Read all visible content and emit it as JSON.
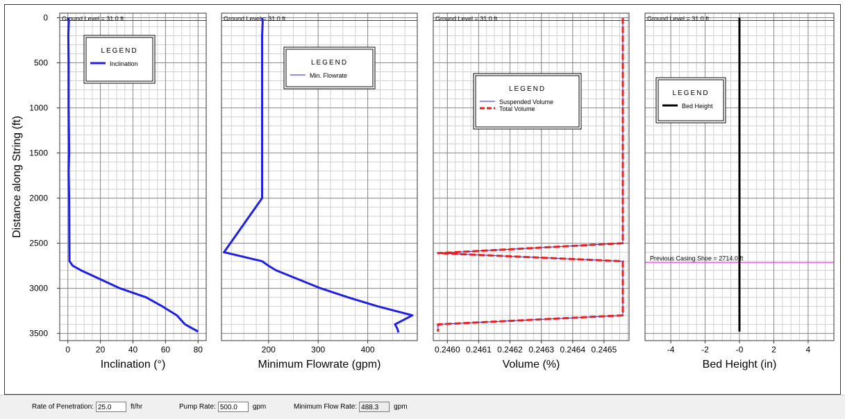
{
  "chart_data": [
    {
      "type": "line",
      "xlabel": "Inclination (°)",
      "ylabel": "Distance along String (ft)",
      "xlim": [
        -5,
        85
      ],
      "xticks": [
        0,
        20,
        40,
        60,
        80
      ],
      "xtick_labels": [
        "0",
        "20",
        "40",
        "60",
        "80"
      ],
      "ylim": [
        3580,
        -50
      ],
      "yticks": [
        0,
        500,
        1000,
        1500,
        2000,
        2500,
        3000,
        3500
      ],
      "ytick_labels": [
        "0",
        "500",
        "1000",
        "1500",
        "2000",
        "2500",
        "3000",
        "3500"
      ],
      "ground_label": "Ground Level = 31.0 ft",
      "ground_y": 31,
      "legend": {
        "title": "LEGEND",
        "entries": [
          {
            "label": "Inclination",
            "color": "#1f1fe6",
            "style": "solid-thick"
          }
        ]
      },
      "series": [
        {
          "name": "Inclination",
          "color": "#1f1fe6",
          "x": [
            0.5,
            0.6,
            0.3,
            0.5,
            0.5,
            0.8,
            0.5,
            0.8,
            1.0,
            3.0,
            8.0,
            20.0,
            32.0,
            48.0,
            58.0,
            67.0,
            72.0,
            80.0
          ],
          "y": [
            0,
            50,
            200,
            500,
            1000,
            1500,
            1700,
            2000,
            2700,
            2750,
            2800,
            2900,
            3000,
            3100,
            3200,
            3300,
            3400,
            3480
          ]
        }
      ]
    },
    {
      "type": "line",
      "xlabel": "Minimum Flowrate (gpm)",
      "xlim": [
        105,
        500
      ],
      "xticks": [
        200,
        300,
        400
      ],
      "xtick_labels": [
        "200",
        "300",
        "400"
      ],
      "ylim": [
        3580,
        -50
      ],
      "yticks": [
        0,
        500,
        1000,
        1500,
        2000,
        2500,
        3000,
        3500
      ],
      "ground_label": "Ground Level = 31.0 ft",
      "ground_y": 31,
      "legend": {
        "title": "LEGEND",
        "entries": [
          {
            "label": "Min. Flowrate",
            "color": "#1f1fe6",
            "style": "solid-thin"
          }
        ]
      },
      "series": [
        {
          "name": "Min. Flowrate",
          "color": "#1f1fe6",
          "x": [
            187,
            188,
            187,
            187,
            187,
            187,
            110,
            187,
            200,
            215,
            260,
            305,
            360,
            420,
            455,
            490,
            455,
            460,
            462
          ],
          "y": [
            0,
            50,
            200,
            500,
            1000,
            2000,
            2600,
            2700,
            2750,
            2800,
            2900,
            3000,
            3100,
            3200,
            3250,
            3300,
            3400,
            3450,
            3490
          ]
        }
      ]
    },
    {
      "type": "line",
      "xlabel": "Volume (%)",
      "xlim": [
        0.245955,
        0.24658
      ],
      "xticks": [
        0.246,
        0.2461,
        0.2462,
        0.2463,
        0.2464,
        0.2465
      ],
      "xtick_labels": [
        "0.2460",
        "0.2461",
        "0.2462",
        "0.2463",
        "0.2464",
        "0.2465"
      ],
      "ylim": [
        3580,
        -50
      ],
      "yticks": [
        0,
        500,
        1000,
        1500,
        2000,
        2500,
        3000,
        3500
      ],
      "ground_label": "Ground Level = 31.0 ft",
      "ground_y": 31,
      "legend": {
        "title": "LEGEND",
        "entries": [
          {
            "label": "Suspended Volume",
            "color": "#1f1fe6",
            "style": "solid-thin"
          },
          {
            "label": "Total Volume",
            "color": "#ee1c1c",
            "style": "dashed"
          }
        ]
      },
      "series": [
        {
          "name": "Suspended Volume",
          "color": "#1f1fe6",
          "x": [
            0.24656,
            0.24656,
            0.24656,
            0.24597,
            0.24656,
            0.24656,
            0.24656,
            0.24597,
            0.24597
          ],
          "y": [
            0,
            1000,
            2500,
            2610,
            2700,
            3000,
            3300,
            3400,
            3480
          ]
        },
        {
          "name": "Total Volume",
          "color": "#ee1c1c",
          "x": [
            0.24656,
            0.24656,
            0.24656,
            0.24597,
            0.24656,
            0.24656,
            0.24656,
            0.24597,
            0.24597
          ],
          "y": [
            0,
            1000,
            2500,
            2610,
            2700,
            3000,
            3300,
            3400,
            3480
          ]
        }
      ]
    },
    {
      "type": "line",
      "xlabel": "Bed Height (in)",
      "xlim": [
        -5.5,
        5.5
      ],
      "xticks": [
        -4,
        -2,
        0,
        2,
        4
      ],
      "xtick_labels": [
        "-4",
        "-2",
        "-0",
        "2",
        "4"
      ],
      "ylim": [
        3580,
        -50
      ],
      "yticks": [
        0,
        500,
        1000,
        1500,
        2000,
        2500,
        3000,
        3500
      ],
      "ground_label": "Ground Level = 31.0 ft",
      "ground_y": 31,
      "casing_label": "Previous Casing Shoe = 2714.0 ft",
      "casing_y": 2714,
      "legend": {
        "title": "LEGEND",
        "entries": [
          {
            "label": "Bed Height",
            "color": "#000000",
            "style": "solid-thick"
          }
        ]
      },
      "series": [
        {
          "name": "Bed Height",
          "color": "#000000",
          "x": [
            0,
            0
          ],
          "y": [
            0,
            3480
          ]
        }
      ]
    }
  ],
  "controls": {
    "rop_label": "Rate of Penetration:",
    "rop_value": "25.0",
    "rop_unit": "ft/hr",
    "pump_label": "Pump Rate:",
    "pump_value": "500.0",
    "pump_unit": "gpm",
    "minflow_label": "Minimum Flow Rate:",
    "minflow_value": "488.3",
    "minflow_unit": "gpm"
  }
}
